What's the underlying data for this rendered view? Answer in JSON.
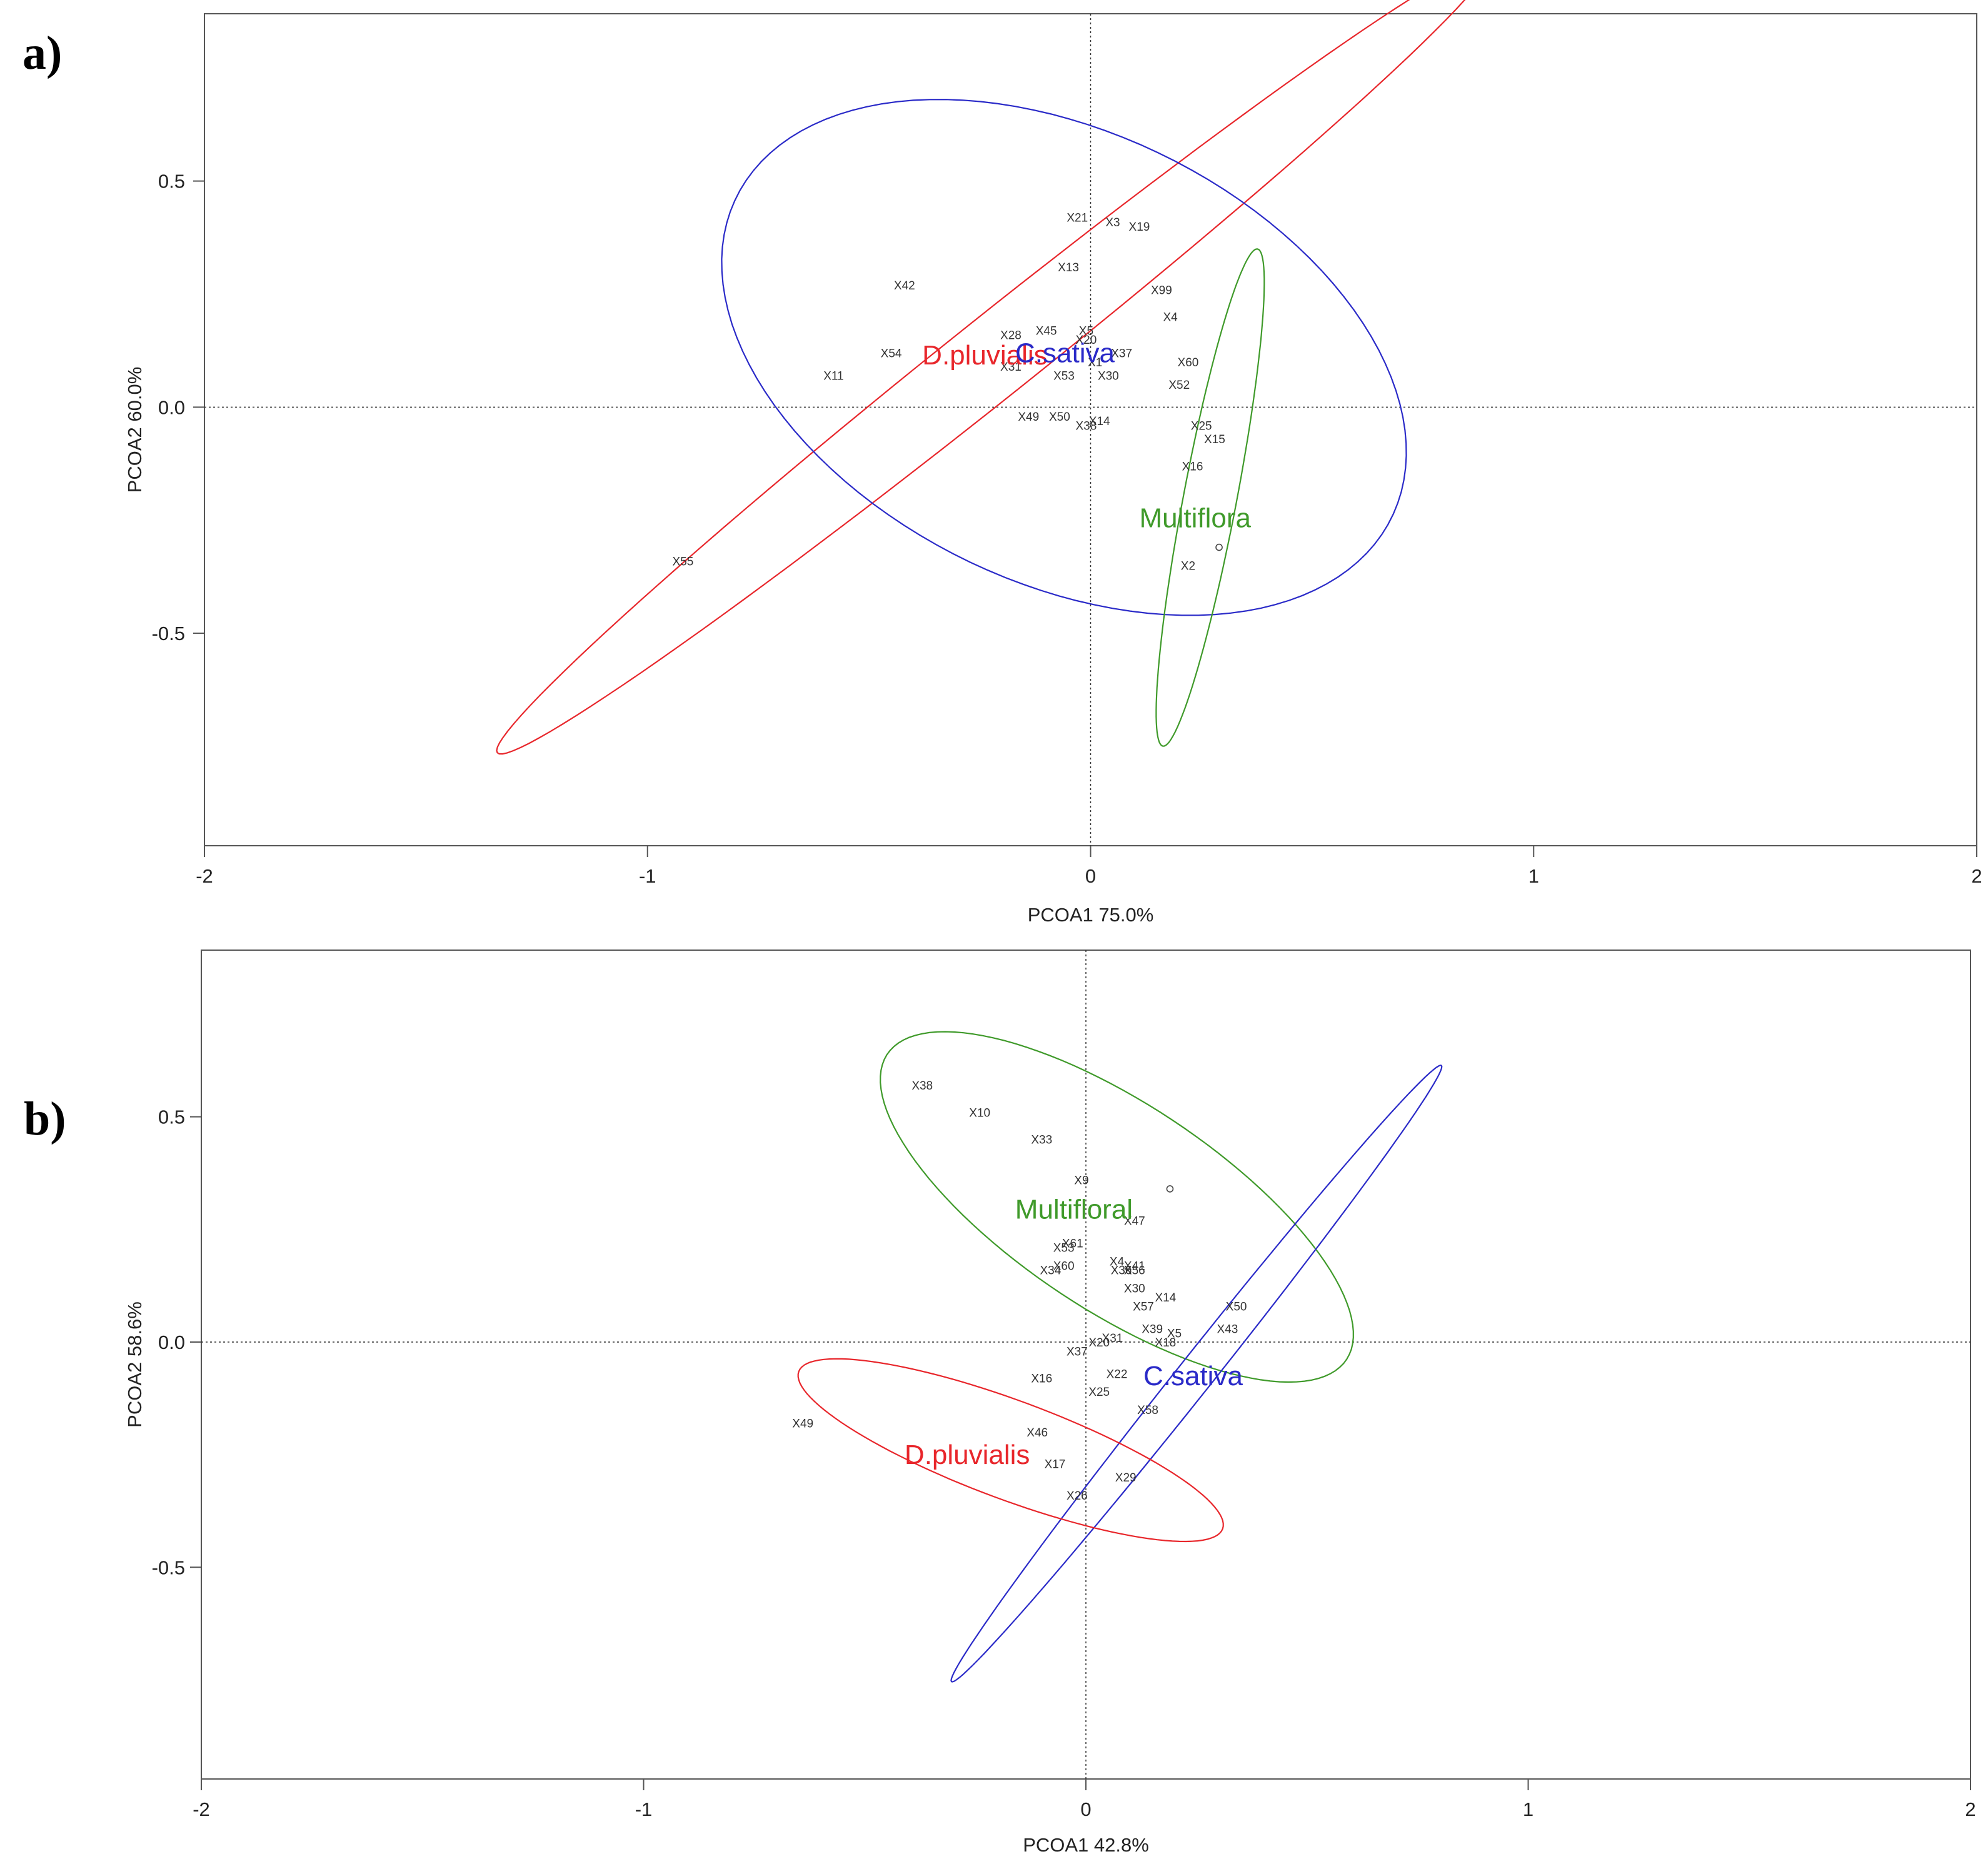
{
  "chart_data": [
    {
      "panel": "a)",
      "type": "scatter",
      "xlabel": "PCOA1 75.0%",
      "ylabel": "PCOA2 60.0%",
      "xlim": [
        -2,
        2
      ],
      "ylim": [
        -0.97,
        0.87
      ],
      "xticks": [
        -2,
        -1,
        0,
        1,
        2
      ],
      "yticks": [
        0.5,
        0.0,
        -0.5
      ],
      "xtick_labels": [
        "-2",
        "-1",
        "0",
        "1",
        "2"
      ],
      "ytick_labels": [
        "0.5",
        "0.0",
        "-0.5"
      ],
      "points": [
        {
          "label": "X21",
          "x": -0.03,
          "y": 0.42
        },
        {
          "label": "X3",
          "x": 0.05,
          "y": 0.41
        },
        {
          "label": "X19",
          "x": 0.11,
          "y": 0.4
        },
        {
          "label": "X13",
          "x": -0.05,
          "y": 0.31
        },
        {
          "label": "X42",
          "x": -0.42,
          "y": 0.27
        },
        {
          "label": "X99",
          "x": 0.16,
          "y": 0.26
        },
        {
          "label": "X4",
          "x": 0.18,
          "y": 0.2
        },
        {
          "label": "X45",
          "x": -0.1,
          "y": 0.17
        },
        {
          "label": "X5",
          "x": -0.01,
          "y": 0.17
        },
        {
          "label": "X28",
          "x": -0.18,
          "y": 0.16
        },
        {
          "label": "X20",
          "x": -0.01,
          "y": 0.15
        },
        {
          "label": "X37",
          "x": 0.07,
          "y": 0.12
        },
        {
          "label": "X54",
          "x": -0.45,
          "y": 0.12
        },
        {
          "label": "X31",
          "x": -0.18,
          "y": 0.09
        },
        {
          "label": "X1",
          "x": 0.01,
          "y": 0.1
        },
        {
          "label": "X60",
          "x": 0.22,
          "y": 0.1
        },
        {
          "label": "X11",
          "x": -0.58,
          "y": 0.07
        },
        {
          "label": "X53",
          "x": -0.06,
          "y": 0.07
        },
        {
          "label": "X30",
          "x": 0.04,
          "y": 0.07
        },
        {
          "label": "X52",
          "x": 0.2,
          "y": 0.05
        },
        {
          "label": "X49",
          "x": -0.14,
          "y": -0.02
        },
        {
          "label": "X50",
          "x": -0.07,
          "y": -0.02
        },
        {
          "label": "X14",
          "x": 0.02,
          "y": -0.03
        },
        {
          "label": "X38",
          "x": -0.01,
          "y": -0.04
        },
        {
          "label": "X25",
          "x": 0.25,
          "y": -0.04
        },
        {
          "label": "X15",
          "x": 0.28,
          "y": -0.07
        },
        {
          "label": "X16",
          "x": 0.23,
          "y": -0.13
        },
        {
          "label": "X2",
          "x": 0.22,
          "y": -0.35
        },
        {
          "label": "X55",
          "x": -0.92,
          "y": -0.34
        }
      ],
      "centroids": [
        {
          "x": 0.29,
          "y": -0.31
        }
      ],
      "groups": [
        {
          "name": "D.pluvialis",
          "color": "#e8262b",
          "label_x": -0.38,
          "label_y": 0.115,
          "ellipse": {
            "cx": -0.22,
            "cy": 0.11,
            "a": 1.42,
            "b": 0.09,
            "angle_deg": 38
          }
        },
        {
          "name": "C.sativa",
          "color": "#2a2ac8",
          "label_x": -0.17,
          "label_y": 0.12,
          "ellipse": {
            "cx": -0.06,
            "cy": 0.11,
            "a": 0.82,
            "b": 0.5,
            "angle_deg": -25
          }
        },
        {
          "name": "Multiflora",
          "color": "#3f9a2a",
          "label_x": 0.11,
          "label_y": -0.245,
          "ellipse": {
            "cx": 0.27,
            "cy": -0.2,
            "a": 0.56,
            "b": 0.06,
            "angle_deg": 79
          }
        }
      ]
    },
    {
      "panel": "b)",
      "type": "scatter",
      "xlabel": "PCOA1 42.8%",
      "ylabel": "PCOA2 58.6%",
      "xlim": [
        -2,
        2
      ],
      "ylim": [
        -0.97,
        0.87
      ],
      "xticks": [
        -2,
        -1,
        0,
        1,
        2
      ],
      "yticks": [
        0.5,
        0.0,
        -0.5
      ],
      "xtick_labels": [
        "-2",
        "-1",
        "0",
        "1",
        "2"
      ],
      "ytick_labels": [
        "0.5",
        "0.0",
        "-0.5"
      ],
      "points": [
        {
          "label": "X38",
          "x": -0.37,
          "y": 0.57
        },
        {
          "label": "X10",
          "x": -0.24,
          "y": 0.51
        },
        {
          "label": "X33",
          "x": -0.1,
          "y": 0.45
        },
        {
          "label": "X9",
          "x": -0.01,
          "y": 0.36
        },
        {
          "label": "X47",
          "x": 0.11,
          "y": 0.27
        },
        {
          "label": "X61",
          "x": -0.03,
          "y": 0.22
        },
        {
          "label": "X53",
          "x": -0.05,
          "y": 0.21
        },
        {
          "label": "X4",
          "x": 0.07,
          "y": 0.18
        },
        {
          "label": "X60",
          "x": -0.05,
          "y": 0.17
        },
        {
          "label": "X34",
          "x": -0.08,
          "y": 0.16
        },
        {
          "label": "X41",
          "x": 0.11,
          "y": 0.17
        },
        {
          "label": "X36",
          "x": 0.08,
          "y": 0.16
        },
        {
          "label": "X56",
          "x": 0.11,
          "y": 0.16
        },
        {
          "label": "X30",
          "x": 0.11,
          "y": 0.12
        },
        {
          "label": "X14",
          "x": 0.18,
          "y": 0.1
        },
        {
          "label": "X57",
          "x": 0.13,
          "y": 0.08
        },
        {
          "label": "X50",
          "x": 0.34,
          "y": 0.08
        },
        {
          "label": "X39",
          "x": 0.15,
          "y": 0.03
        },
        {
          "label": "X43",
          "x": 0.32,
          "y": 0.03
        },
        {
          "label": "X5",
          "x": 0.2,
          "y": 0.02
        },
        {
          "label": "X18",
          "x": 0.18,
          "y": 0.0
        },
        {
          "label": "X31",
          "x": 0.06,
          "y": 0.01
        },
        {
          "label": "X20",
          "x": 0.03,
          "y": 0.0
        },
        {
          "label": "X37",
          "x": -0.02,
          "y": -0.02
        },
        {
          "label": "X16",
          "x": -0.1,
          "y": -0.08
        },
        {
          "label": "X22",
          "x": 0.07,
          "y": -0.07
        },
        {
          "label": "X25",
          "x": 0.03,
          "y": -0.11
        },
        {
          "label": "X58",
          "x": 0.14,
          "y": -0.15
        },
        {
          "label": "X49",
          "x": -0.64,
          "y": -0.18
        },
        {
          "label": "X46",
          "x": -0.11,
          "y": -0.2
        },
        {
          "label": "X17",
          "x": -0.07,
          "y": -0.27
        },
        {
          "label": "X29",
          "x": 0.09,
          "y": -0.3
        },
        {
          "label": "X26",
          "x": -0.02,
          "y": -0.34
        }
      ],
      "centroids": [
        {
          "x": 0.19,
          "y": 0.34
        }
      ],
      "groups": [
        {
          "name": "Multifloral",
          "color": "#3f9a2a",
          "label_x": -0.16,
          "label_y": 0.295,
          "ellipse": {
            "cx": 0.07,
            "cy": 0.3,
            "a": 0.62,
            "b": 0.23,
            "angle_deg": -33
          }
        },
        {
          "name": "C.sativa",
          "color": "#2a2ac8",
          "label_x": 0.13,
          "label_y": -0.075,
          "ellipse": {
            "cx": 0.25,
            "cy": -0.07,
            "a": 0.88,
            "b": 0.04,
            "angle_deg": 51
          }
        },
        {
          "name": "D.pluvialis",
          "color": "#e8262b",
          "label_x": -0.41,
          "label_y": -0.25,
          "ellipse": {
            "cx": -0.17,
            "cy": -0.24,
            "a": 0.51,
            "b": 0.11,
            "angle_deg": -20
          }
        }
      ]
    }
  ]
}
